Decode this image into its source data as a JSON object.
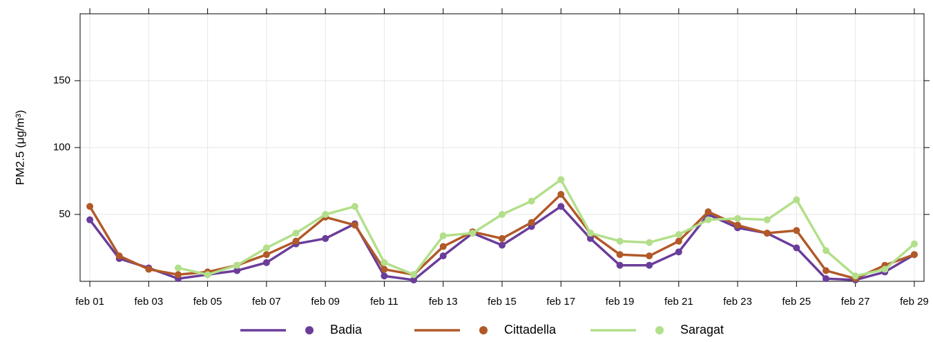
{
  "chart_data": {
    "type": "line",
    "y_label": "PM2.5 (μg/m³)",
    "x": [
      1,
      2,
      3,
      4,
      5,
      6,
      7,
      8,
      9,
      10,
      11,
      12,
      13,
      14,
      15,
      16,
      17,
      18,
      19,
      20,
      21,
      22,
      23,
      24,
      25,
      26,
      27,
      28,
      29
    ],
    "xlim": [
      0.67,
      29.33
    ],
    "xticks": [
      {
        "value": 1,
        "label": "feb 01"
      },
      {
        "value": 3,
        "label": "feb 03"
      },
      {
        "value": 5,
        "label": "feb 05"
      },
      {
        "value": 7,
        "label": "feb 07"
      },
      {
        "value": 9,
        "label": "feb 09"
      },
      {
        "value": 11,
        "label": "feb 11"
      },
      {
        "value": 13,
        "label": "feb 13"
      },
      {
        "value": 15,
        "label": "feb 15"
      },
      {
        "value": 17,
        "label": "feb 17"
      },
      {
        "value": 19,
        "label": "feb 19"
      },
      {
        "value": 21,
        "label": "feb 21"
      },
      {
        "value": 23,
        "label": "feb 23"
      },
      {
        "value": 25,
        "label": "feb 25"
      },
      {
        "value": 27,
        "label": "feb 27"
      },
      {
        "value": 29,
        "label": "feb 29"
      }
    ],
    "ylim": [
      0,
      200
    ],
    "yticks": [
      50,
      100,
      150
    ],
    "grid": true,
    "series": [
      {
        "name": "Badia",
        "color": "#6a3d9a",
        "values": [
          46,
          17,
          10,
          2,
          5,
          8,
          14,
          28,
          32,
          43,
          4,
          1,
          19,
          36,
          27,
          41,
          56,
          32,
          12,
          12,
          22,
          50,
          40,
          36,
          25,
          2,
          1,
          7,
          20
        ]
      },
      {
        "name": "Cittadella",
        "color": "#b15928",
        "values": [
          56,
          19,
          9,
          5,
          7,
          12,
          20,
          30,
          48,
          42,
          9,
          5,
          26,
          37,
          32,
          44,
          65,
          36,
          20,
          19,
          30,
          52,
          42,
          36,
          38,
          8,
          2,
          12,
          20
        ]
      },
      {
        "name": "Saragat",
        "color": "#b2df8a",
        "values": [
          null,
          null,
          null,
          10,
          5,
          12,
          25,
          36,
          50,
          56,
          14,
          5,
          34,
          36,
          50,
          60,
          76,
          36,
          30,
          29,
          35,
          46,
          47,
          46,
          61,
          23,
          4,
          9,
          28
        ]
      }
    ]
  }
}
